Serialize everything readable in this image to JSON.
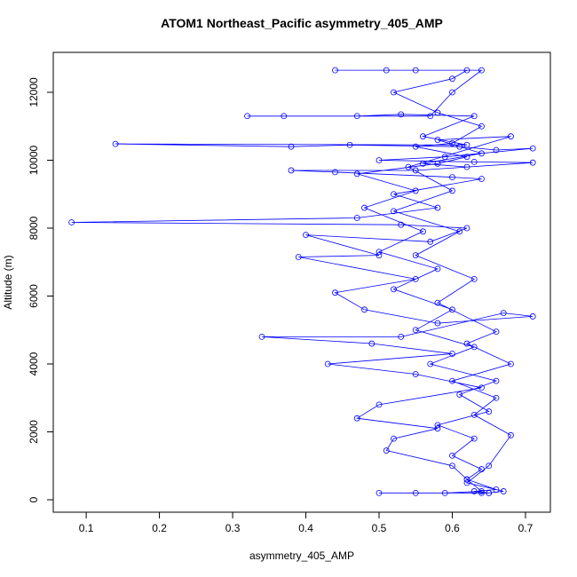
{
  "chart_data": {
    "type": "line",
    "title": "ATOM1 Northeast_Pacific asymmetry_405_AMP",
    "x_label": "asymmetry_405_AMP",
    "y_label": "Altitude (m)",
    "xlim": [
      0.055,
      0.734
    ],
    "ylim": [
      -366,
      13176
    ],
    "xticks": [
      0.1,
      0.2,
      0.3,
      0.4,
      0.5,
      0.6,
      0.7
    ],
    "yticks": [
      0,
      2000,
      4000,
      6000,
      8000,
      10000,
      12000
    ],
    "series": [
      {
        "color": "#0000ff",
        "marker": "circle",
        "x": [
          0.64,
          0.65,
          0.63,
          0.66,
          0.62,
          0.64,
          0.6,
          0.63,
          0.58,
          0.65,
          0.61,
          0.66,
          0.57,
          0.63,
          0.55,
          0.6,
          0.52,
          0.58,
          0.5,
          0.56,
          0.48,
          0.55,
          0.47,
          0.58,
          0.62,
          0.55,
          0.6,
          0.64,
          0.58,
          0.52,
          0.6,
          0.62,
          0.55,
          0.44,
          0.51,
          0.64,
          0.6,
          0.57,
          0.32,
          0.37,
          0.47,
          0.53,
          0.63,
          0.56,
          0.62,
          0.14,
          0.38,
          0.46,
          0.61,
          0.66,
          0.71,
          0.59,
          0.5,
          0.63,
          0.71,
          0.55,
          0.38,
          0.44,
          0.6,
          0.64,
          0.52,
          0.58,
          0.47,
          0.08,
          0.53,
          0.62,
          0.57,
          0.4,
          0.5,
          0.39,
          0.55,
          0.44,
          0.48,
          0.58,
          0.71,
          0.67,
          0.53,
          0.34,
          0.49,
          0.6,
          0.43,
          0.55,
          0.64,
          0.5,
          0.47,
          0.58,
          0.52,
          0.51,
          0.6,
          0.62,
          0.64,
          0.59,
          0.55,
          0.5,
          0.65,
          0.67,
          0.62,
          0.65,
          0.68,
          0.63,
          0.66,
          0.6,
          0.68,
          0.62,
          0.66,
          0.58,
          0.63,
          0.55,
          0.61,
          0.52,
          0.6,
          0.54,
          0.68,
          0.58,
          0.64,
          0.56,
          0.62
        ],
        "values": [
          200,
          200,
          250,
          300,
          600,
          900,
          1300,
          1800,
          2200,
          2600,
          3100,
          3500,
          4000,
          4500,
          5000,
          5600,
          6200,
          6800,
          7300,
          7900,
          8600,
          9100,
          9600,
          9900,
          10100,
          10400,
          10500,
          11000,
          11400,
          12000,
          12400,
          12650,
          12650,
          12650,
          12650,
          12650,
          12000,
          11300,
          11300,
          11300,
          11300,
          11350,
          11300,
          10700,
          10450,
          10480,
          10400,
          10450,
          10400,
          10300,
          10350,
          10100,
          10000,
          9950,
          9930,
          9700,
          9700,
          9650,
          9500,
          9450,
          9000,
          8600,
          8300,
          8170,
          8100,
          8000,
          7600,
          7800,
          7200,
          7150,
          6500,
          6100,
          5600,
          5200,
          5400,
          5500,
          4800,
          4800,
          4600,
          4300,
          4000,
          3700,
          3300,
          2800,
          2400,
          2100,
          1800,
          1450,
          1000,
          600,
          250,
          200,
          200,
          200,
          200,
          250,
          500,
          1000,
          1900,
          2500,
          3000,
          3500,
          4000,
          4600,
          4950,
          5800,
          6500,
          7200,
          7900,
          8500,
          9100,
          9800,
          10700,
          10600,
          10200,
          9900,
          9800
        ]
      }
    ]
  }
}
